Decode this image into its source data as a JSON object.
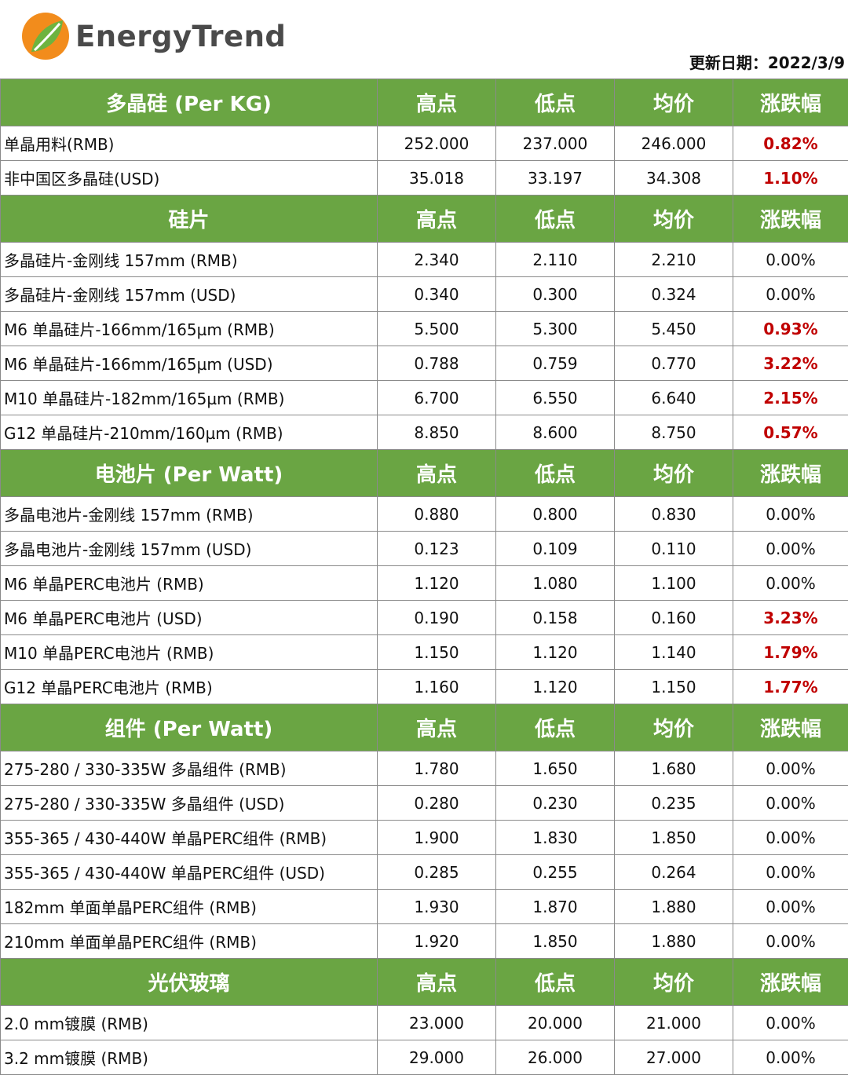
{
  "header": {
    "brand": "EnergyTrend",
    "update_date": "更新日期：2022/3/9",
    "colors": {
      "logo_orange": "#f28c1c",
      "logo_green": "#6db33f",
      "brand_text": "#4a4a4a"
    }
  },
  "colors": {
    "section_bg": "#6aa543",
    "positive_change": "#c00000",
    "border": "#8a8a8a"
  },
  "sections": [
    {
      "title": "多晶硅 (Per KG)",
      "columns": [
        "高点",
        "低点",
        "均价",
        "涨跌幅"
      ],
      "rows": [
        {
          "name": "单晶用料(RMB)",
          "high": "252.000",
          "low": "237.000",
          "avg": "246.000",
          "change": "0.82%",
          "up": true
        },
        {
          "name": "非中国区多晶硅(USD)",
          "high": "35.018",
          "low": "33.197",
          "avg": "34.308",
          "change": "1.10%",
          "up": true
        }
      ]
    },
    {
      "title": "硅片",
      "columns": [
        "高点",
        "低点",
        "均价",
        "涨跌幅"
      ],
      "rows": [
        {
          "name": "多晶硅片-金刚线 157mm (RMB)",
          "high": "2.340",
          "low": "2.110",
          "avg": "2.210",
          "change": "0.00%",
          "up": false
        },
        {
          "name": "多晶硅片-金刚线 157mm (USD)",
          "high": "0.340",
          "low": "0.300",
          "avg": "0.324",
          "change": "0.00%",
          "up": false
        },
        {
          "name": "M6 单晶硅片-166mm/165µm (RMB)",
          "high": "5.500",
          "low": "5.300",
          "avg": "5.450",
          "change": "0.93%",
          "up": true
        },
        {
          "name": "M6 单晶硅片-166mm/165µm (USD)",
          "high": "0.788",
          "low": "0.759",
          "avg": "0.770",
          "change": "3.22%",
          "up": true
        },
        {
          "name": "M10 单晶硅片-182mm/165µm (RMB)",
          "high": "6.700",
          "low": "6.550",
          "avg": "6.640",
          "change": "2.15%",
          "up": true
        },
        {
          "name": "G12 单晶硅片-210mm/160µm  (RMB)",
          "high": "8.850",
          "low": "8.600",
          "avg": "8.750",
          "change": "0.57%",
          "up": true
        }
      ]
    },
    {
      "title": "电池片 (Per Watt)",
      "columns": [
        "高点",
        "低点",
        "均价",
        "涨跌幅"
      ],
      "rows": [
        {
          "name": "多晶电池片-金刚线 157mm (RMB)",
          "high": "0.880",
          "low": "0.800",
          "avg": "0.830",
          "change": "0.00%",
          "up": false
        },
        {
          "name": "多晶电池片-金刚线 157mm (USD)",
          "high": "0.123",
          "low": "0.109",
          "avg": "0.110",
          "change": "0.00%",
          "up": false
        },
        {
          "name": "M6 单晶PERC电池片 (RMB)",
          "high": "1.120",
          "low": "1.080",
          "avg": "1.100",
          "change": "0.00%",
          "up": false
        },
        {
          "name": "M6 单晶PERC电池片 (USD)",
          "high": "0.190",
          "low": "0.158",
          "avg": "0.160",
          "change": "3.23%",
          "up": true
        },
        {
          "name": "M10 单晶PERC电池片 (RMB)",
          "high": "1.150",
          "low": "1.120",
          "avg": "1.140",
          "change": "1.79%",
          "up": true
        },
        {
          "name": "G12 单晶PERC电池片 (RMB)",
          "high": "1.160",
          "low": "1.120",
          "avg": "1.150",
          "change": "1.77%",
          "up": true
        }
      ]
    },
    {
      "title": "组件 (Per Watt)",
      "columns": [
        "高点",
        "低点",
        "均价",
        "涨跌幅"
      ],
      "rows": [
        {
          "name": "275-280 / 330-335W 多晶组件 (RMB)",
          "high": "1.780",
          "low": "1.650",
          "avg": "1.680",
          "change": "0.00%",
          "up": false
        },
        {
          "name": "275-280 / 330-335W 多晶组件 (USD)",
          "high": "0.280",
          "low": "0.230",
          "avg": "0.235",
          "change": "0.00%",
          "up": false
        },
        {
          "name": "355-365 / 430-440W 单晶PERC组件 (RMB)",
          "high": "1.900",
          "low": "1.830",
          "avg": "1.850",
          "change": "0.00%",
          "up": false
        },
        {
          "name": "355-365 / 430-440W 单晶PERC组件 (USD)",
          "high": "0.285",
          "low": "0.255",
          "avg": "0.264",
          "change": "0.00%",
          "up": false
        },
        {
          "name": "182mm 单面单晶PERC组件 (RMB)",
          "high": "1.930",
          "low": "1.870",
          "avg": "1.880",
          "change": "0.00%",
          "up": false
        },
        {
          "name": "210mm 单面单晶PERC组件 (RMB)",
          "high": "1.920",
          "low": "1.850",
          "avg": "1.880",
          "change": "0.00%",
          "up": false
        }
      ]
    },
    {
      "title": "光伏玻璃",
      "columns": [
        "高点",
        "低点",
        "均价",
        "涨跌幅"
      ],
      "rows": [
        {
          "name": "2.0 mm镀膜 (RMB)",
          "high": "23.000",
          "low": "20.000",
          "avg": "21.000",
          "change": "0.00%",
          "up": false
        },
        {
          "name": "3.2 mm镀膜 (RMB)",
          "high": "29.000",
          "low": "26.000",
          "avg": "27.000",
          "change": "0.00%",
          "up": false
        }
      ]
    }
  ]
}
